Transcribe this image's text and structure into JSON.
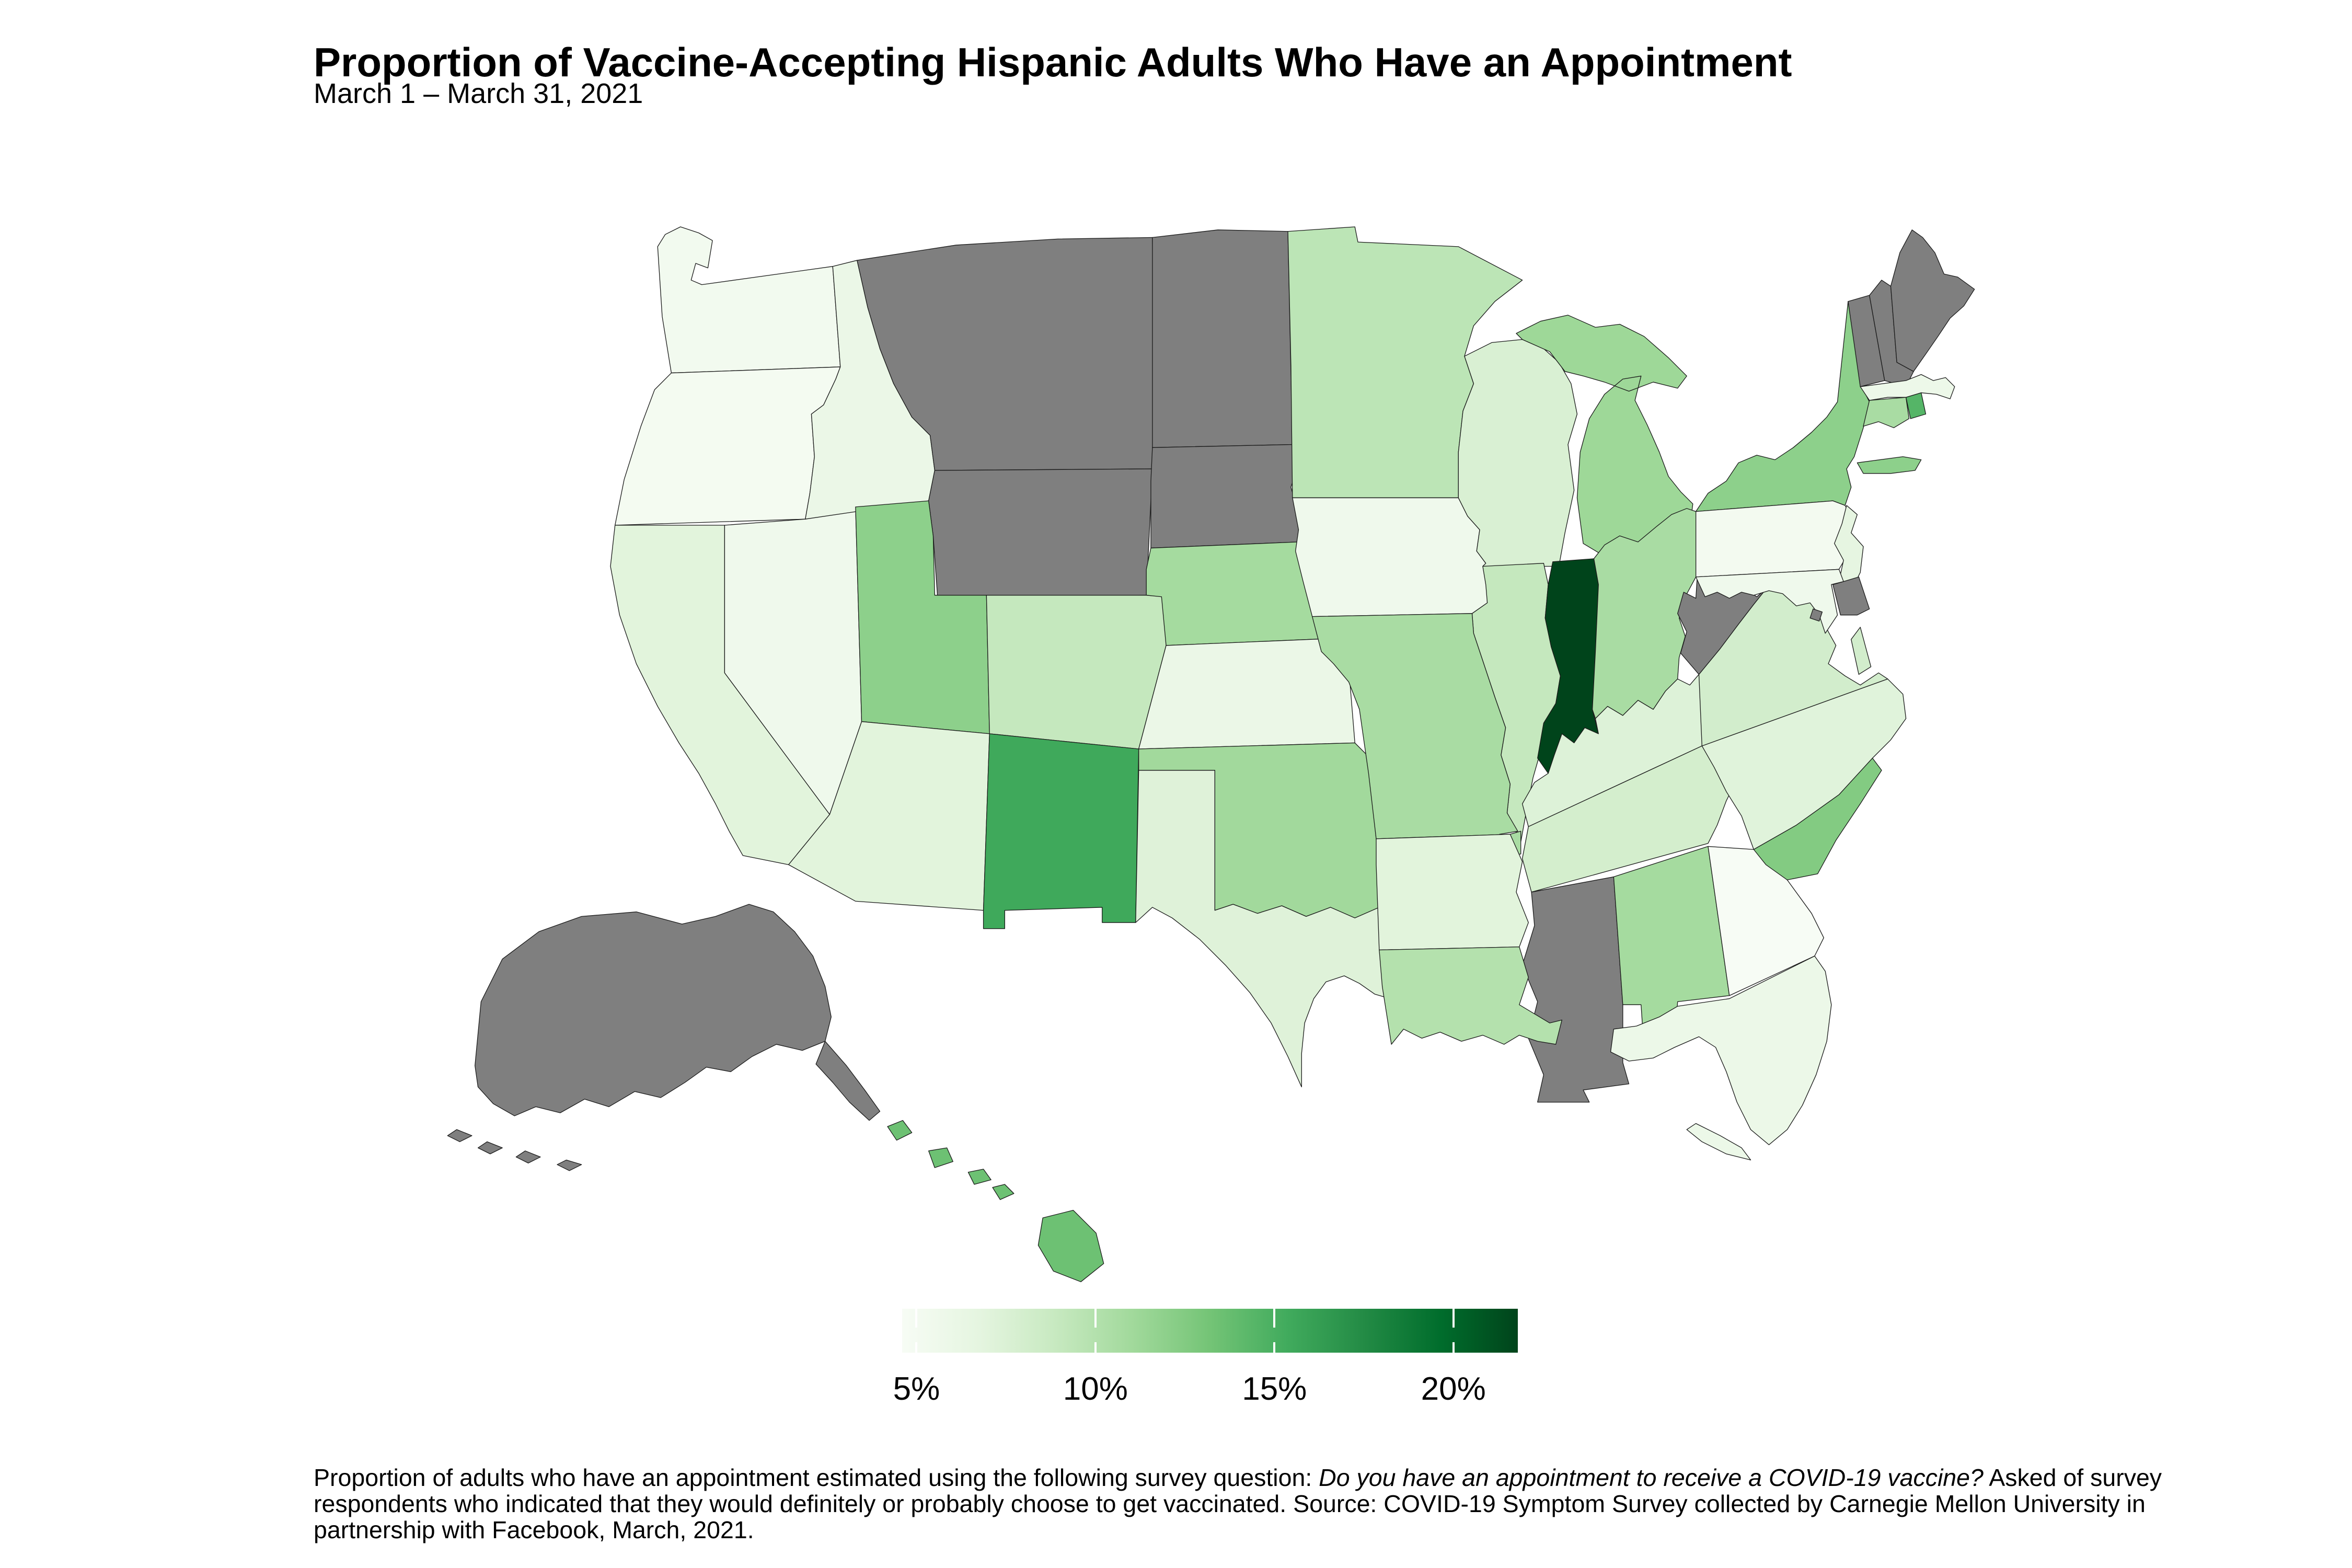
{
  "title": "Proportion of Vaccine-Accepting Hispanic Adults Who Have an Appointment",
  "subtitle": "March 1 – March 31, 2021",
  "caption": {
    "part1": "Proportion of adults who have an appointment estimated using the following survey question: ",
    "italic_question": "Do you have an appointment to receive a COVID-19 vaccine?",
    "part2": " Asked of survey respondents who indicated that they would definitely or probably choose to get vaccinated. Source: COVID-19 Symptom Survey collected by Carnegie Mellon University in partnership with Facebook, March, 2021."
  },
  "legend": {
    "tick_labels": [
      "5%",
      "10%",
      "15%",
      "20%"
    ],
    "tick_values": [
      5,
      10,
      15,
      20
    ],
    "domain": [
      4.6,
      21.8
    ],
    "palette": [
      "#f7fcf5",
      "#e5f5e0",
      "#c7e9c0",
      "#a1d99b",
      "#74c476",
      "#41ab5d",
      "#238b45",
      "#006d2c",
      "#00441b"
    ],
    "no_data_color": "#7f7f7f",
    "border_color": "#1a1a1a"
  },
  "chart_data": {
    "type": "choropleth_map",
    "region": "United States (states, AK and HI insets)",
    "metric": "Percent of vaccine-accepting Hispanic adults who have a COVID-19 vaccine appointment",
    "unit": "percent",
    "period": "March 1 - March 31, 2021",
    "note": "Gray states indicate no data reported",
    "states": [
      {
        "abbr": "WA",
        "name": "Washington",
        "value": 5.2
      },
      {
        "abbr": "OR",
        "name": "Oregon",
        "value": 5.0
      },
      {
        "abbr": "CA",
        "name": "California",
        "value": 7.0
      },
      {
        "abbr": "NV",
        "name": "Nevada",
        "value": 5.5
      },
      {
        "abbr": "ID",
        "name": "Idaho",
        "value": 6.0
      },
      {
        "abbr": "MT",
        "name": "Montana",
        "value": null
      },
      {
        "abbr": "WY",
        "name": "Wyoming",
        "value": null
      },
      {
        "abbr": "UT",
        "name": "Utah",
        "value": 12.0
      },
      {
        "abbr": "CO",
        "name": "Colorado",
        "value": 9.0
      },
      {
        "abbr": "AZ",
        "name": "Arizona",
        "value": 7.0
      },
      {
        "abbr": "NM",
        "name": "New Mexico",
        "value": 15.5
      },
      {
        "abbr": "ND",
        "name": "North Dakota",
        "value": null
      },
      {
        "abbr": "SD",
        "name": "South Dakota",
        "value": null
      },
      {
        "abbr": "NE",
        "name": "Nebraska",
        "value": 10.8
      },
      {
        "abbr": "KS",
        "name": "Kansas",
        "value": 6.0
      },
      {
        "abbr": "OK",
        "name": "Oklahoma",
        "value": 11.0
      },
      {
        "abbr": "TX",
        "name": "Texas",
        "value": 7.2
      },
      {
        "abbr": "MN",
        "name": "Minnesota",
        "value": 9.5
      },
      {
        "abbr": "IA",
        "name": "Iowa",
        "value": 5.5
      },
      {
        "abbr": "MO",
        "name": "Missouri",
        "value": 10.6
      },
      {
        "abbr": "AR",
        "name": "Arkansas",
        "value": 7.0
      },
      {
        "abbr": "LA",
        "name": "Louisiana",
        "value": 10.0
      },
      {
        "abbr": "WI",
        "name": "Wisconsin",
        "value": 7.6
      },
      {
        "abbr": "IL",
        "name": "Illinois",
        "value": 9.0
      },
      {
        "abbr": "MI",
        "name": "Michigan",
        "value": 11.2
      },
      {
        "abbr": "IN",
        "name": "Indiana",
        "value": 22.0
      },
      {
        "abbr": "OH",
        "name": "Ohio",
        "value": 10.6
      },
      {
        "abbr": "KY",
        "name": "Kentucky",
        "value": 7.3
      },
      {
        "abbr": "TN",
        "name": "Tennessee",
        "value": 8.0
      },
      {
        "abbr": "MS",
        "name": "Mississippi",
        "value": null
      },
      {
        "abbr": "AL",
        "name": "Alabama",
        "value": 10.8
      },
      {
        "abbr": "GA",
        "name": "Georgia",
        "value": 4.6
      },
      {
        "abbr": "FL",
        "name": "Florida",
        "value": 5.9
      },
      {
        "abbr": "SC",
        "name": "South Carolina",
        "value": 12.5
      },
      {
        "abbr": "NC",
        "name": "North Carolina",
        "value": 7.1
      },
      {
        "abbr": "VA",
        "name": "Virginia",
        "value": 8.1
      },
      {
        "abbr": "WV",
        "name": "West Virginia",
        "value": null
      },
      {
        "abbr": "MD",
        "name": "Maryland",
        "value": 5.5
      },
      {
        "abbr": "DE",
        "name": "Delaware",
        "value": null
      },
      {
        "abbr": "DC",
        "name": "District of Columbia",
        "value": null
      },
      {
        "abbr": "PA",
        "name": "Pennsylvania",
        "value": 5.1
      },
      {
        "abbr": "NJ",
        "name": "New Jersey",
        "value": 6.6
      },
      {
        "abbr": "NY",
        "name": "New York",
        "value": 12.0
      },
      {
        "abbr": "CT",
        "name": "Connecticut",
        "value": 10.6
      },
      {
        "abbr": "RI",
        "name": "Rhode Island",
        "value": 14.5
      },
      {
        "abbr": "MA",
        "name": "Massachusetts",
        "value": 5.8
      },
      {
        "abbr": "VT",
        "name": "Vermont",
        "value": null
      },
      {
        "abbr": "NH",
        "name": "New Hampshire",
        "value": null
      },
      {
        "abbr": "ME",
        "name": "Maine",
        "value": null
      },
      {
        "abbr": "AK",
        "name": "Alaska",
        "value": null
      },
      {
        "abbr": "HI",
        "name": "Hawaii",
        "value": 13.5
      }
    ]
  }
}
